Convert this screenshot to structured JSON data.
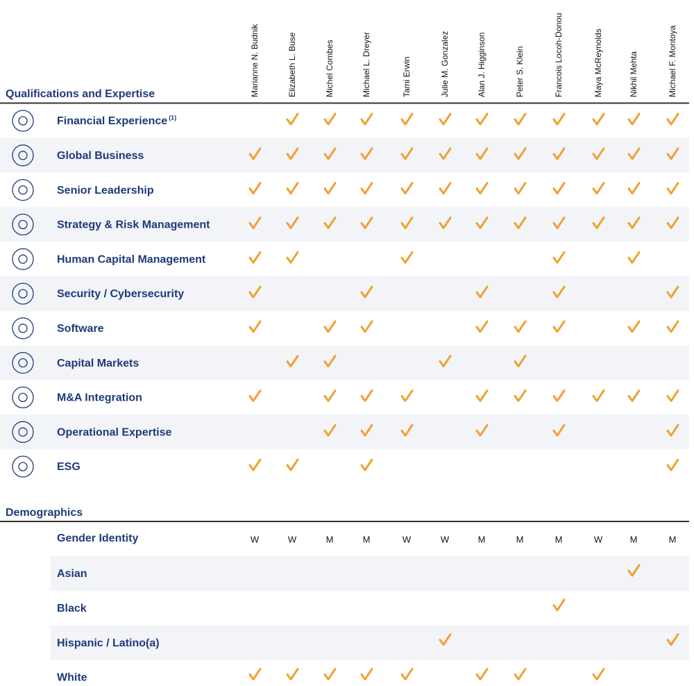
{
  "directors": [
    "Marianne N. Budnik",
    "Elizabeth L. Buse",
    "Michel Combes",
    "Michael L. Dreyer",
    "Tami Erwin",
    "Julie M. Gonzalez",
    "Alan J. Higginson",
    "Peter S. Klein",
    "Francois Locoh-Donou",
    "Maya McReynolds",
    "Nikhil Mehta",
    "Michael F. Montoya"
  ],
  "qualifications": {
    "title": "Qualifications and Expertise",
    "rows": [
      {
        "label": "Financial Experience",
        "note": "(1)",
        "checks": [
          false,
          true,
          true,
          true,
          true,
          true,
          true,
          true,
          true,
          true,
          true,
          true
        ]
      },
      {
        "label": "Global Business",
        "checks": [
          true,
          true,
          true,
          true,
          true,
          true,
          true,
          true,
          true,
          true,
          true,
          true
        ]
      },
      {
        "label": "Senior Leadership",
        "checks": [
          true,
          true,
          true,
          true,
          true,
          true,
          true,
          true,
          true,
          true,
          true,
          true
        ]
      },
      {
        "label": "Strategy & Risk Management",
        "checks": [
          true,
          true,
          true,
          true,
          true,
          true,
          true,
          true,
          true,
          true,
          true,
          true
        ]
      },
      {
        "label": "Human Capital Management",
        "checks": [
          true,
          true,
          false,
          false,
          true,
          false,
          false,
          false,
          true,
          false,
          true,
          false
        ]
      },
      {
        "label": "Security / Cybersecurity",
        "checks": [
          true,
          false,
          false,
          true,
          false,
          false,
          true,
          false,
          true,
          false,
          false,
          true
        ]
      },
      {
        "label": "Software",
        "checks": [
          true,
          false,
          true,
          true,
          false,
          false,
          true,
          true,
          true,
          false,
          true,
          true
        ]
      },
      {
        "label": "Capital Markets",
        "checks": [
          false,
          true,
          true,
          false,
          false,
          true,
          false,
          true,
          false,
          false,
          false,
          false
        ]
      },
      {
        "label": "M&A Integration",
        "checks": [
          true,
          false,
          true,
          true,
          true,
          false,
          true,
          true,
          true,
          true,
          true,
          true
        ]
      },
      {
        "label": "Operational Expertise",
        "checks": [
          false,
          false,
          true,
          true,
          true,
          false,
          true,
          false,
          true,
          false,
          false,
          true
        ]
      },
      {
        "label": "ESG",
        "checks": [
          true,
          true,
          false,
          true,
          false,
          false,
          false,
          false,
          false,
          false,
          false,
          true
        ]
      }
    ]
  },
  "demographics": {
    "title": "Demographics",
    "gender": {
      "label": "Gender Identity",
      "values": [
        "W",
        "W",
        "M",
        "M",
        "W",
        "W",
        "M",
        "M",
        "M",
        "W",
        "M",
        "M"
      ]
    },
    "rows": [
      {
        "label": "Asian",
        "checks": [
          false,
          false,
          false,
          false,
          false,
          false,
          false,
          false,
          false,
          false,
          true,
          false
        ]
      },
      {
        "label": "Black",
        "checks": [
          false,
          false,
          false,
          false,
          false,
          false,
          false,
          false,
          true,
          false,
          false,
          false
        ]
      },
      {
        "label": "Hispanic / Latino(a)",
        "checks": [
          false,
          false,
          false,
          false,
          false,
          true,
          false,
          false,
          false,
          false,
          false,
          true
        ]
      },
      {
        "label": "White",
        "checks": [
          true,
          true,
          true,
          true,
          true,
          false,
          true,
          true,
          false,
          true,
          false,
          false
        ]
      }
    ]
  }
}
